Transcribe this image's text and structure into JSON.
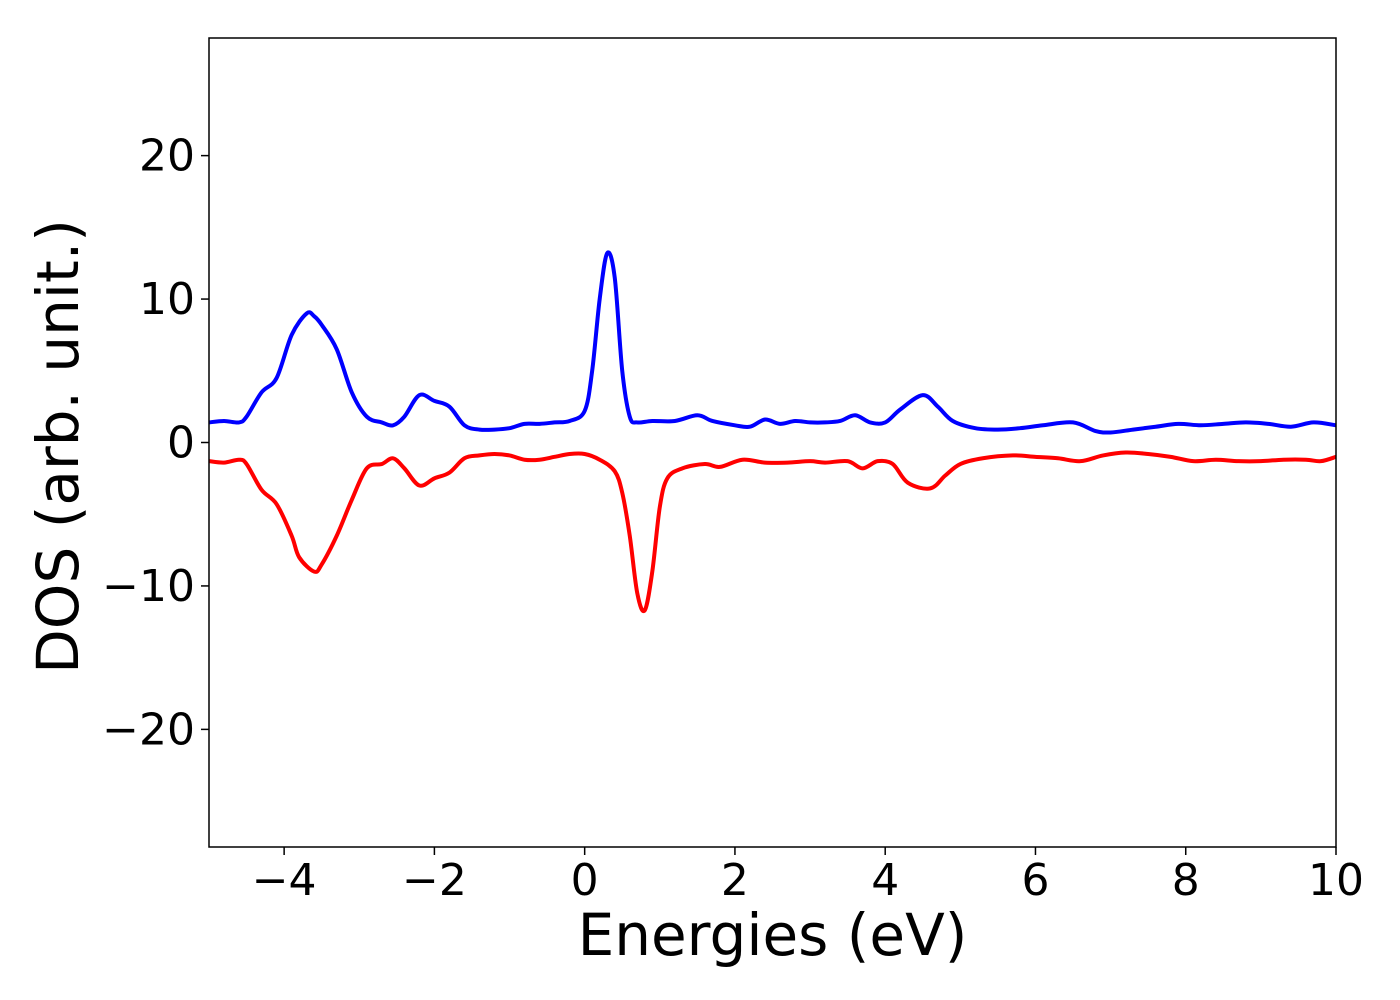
{
  "chart_data": {
    "type": "line",
    "title": "",
    "xlabel": "Energies (eV)",
    "ylabel": "DOS (arb. unit.)",
    "xlim": [
      -5,
      10
    ],
    "ylim": [
      -28.2,
      28.2
    ],
    "grid": false,
    "legend": "none",
    "x_ticks": [
      -4,
      -2,
      0,
      2,
      4,
      6,
      8,
      10
    ],
    "x_tick_labels": [
      "−4",
      "−2",
      "0",
      "2",
      "4",
      "6",
      "8",
      "10"
    ],
    "y_ticks": [
      -20,
      -10,
      0,
      10,
      20
    ],
    "y_tick_labels": [
      "−20",
      "−10",
      "0",
      "10",
      "20"
    ],
    "series": [
      {
        "color": "#0000ff",
        "x": [
          -5.0,
          -4.8,
          -4.6,
          -4.5,
          -4.3,
          -4.1,
          -3.9,
          -3.7,
          -3.6,
          -3.5,
          -3.3,
          -3.1,
          -2.9,
          -2.7,
          -2.55,
          -2.4,
          -2.2,
          -2.0,
          -1.8,
          -1.6,
          -1.4,
          -1.2,
          -1.0,
          -0.8,
          -0.6,
          -0.4,
          -0.2,
          0.0,
          0.1,
          0.2,
          0.3,
          0.4,
          0.5,
          0.6,
          0.7,
          0.9,
          1.2,
          1.5,
          1.7,
          2.0,
          2.2,
          2.4,
          2.6,
          2.8,
          3.0,
          3.2,
          3.4,
          3.6,
          3.8,
          4.0,
          4.2,
          4.5,
          4.7,
          4.9,
          5.2,
          5.5,
          5.8,
          6.1,
          6.5,
          6.8,
          7.0,
          7.3,
          7.6,
          7.9,
          8.2,
          8.5,
          8.8,
          9.1,
          9.4,
          9.7,
          10.0
        ],
        "y": [
          1.4,
          1.5,
          1.4,
          1.8,
          3.5,
          4.5,
          7.5,
          9.0,
          8.8,
          8.2,
          6.5,
          3.5,
          1.8,
          1.4,
          1.2,
          1.8,
          3.3,
          2.9,
          2.5,
          1.2,
          0.9,
          0.9,
          1.0,
          1.3,
          1.3,
          1.4,
          1.5,
          2.2,
          5.0,
          10.0,
          13.2,
          11.5,
          5.0,
          1.8,
          1.4,
          1.5,
          1.5,
          1.9,
          1.5,
          1.2,
          1.1,
          1.6,
          1.3,
          1.5,
          1.4,
          1.4,
          1.5,
          1.9,
          1.4,
          1.4,
          2.3,
          3.3,
          2.5,
          1.5,
          1.0,
          0.9,
          1.0,
          1.2,
          1.4,
          0.8,
          0.7,
          0.9,
          1.1,
          1.3,
          1.2,
          1.3,
          1.4,
          1.3,
          1.1,
          1.4,
          1.2
        ]
      },
      {
        "color": "#ff0000",
        "x": [
          -5.0,
          -4.8,
          -4.6,
          -4.5,
          -4.3,
          -4.1,
          -3.9,
          -3.8,
          -3.6,
          -3.5,
          -3.3,
          -3.1,
          -2.9,
          -2.7,
          -2.55,
          -2.4,
          -2.2,
          -2.0,
          -1.8,
          -1.6,
          -1.4,
          -1.2,
          -1.0,
          -0.8,
          -0.6,
          -0.4,
          -0.2,
          0.0,
          0.2,
          0.4,
          0.5,
          0.6,
          0.7,
          0.8,
          0.9,
          1.0,
          1.1,
          1.3,
          1.6,
          1.8,
          2.1,
          2.4,
          2.7,
          3.0,
          3.2,
          3.5,
          3.7,
          3.9,
          4.1,
          4.3,
          4.6,
          4.8,
          5.0,
          5.3,
          5.7,
          6.0,
          6.3,
          6.6,
          6.9,
          7.2,
          7.5,
          7.8,
          8.1,
          8.4,
          8.7,
          9.0,
          9.3,
          9.6,
          9.8,
          10.0
        ],
        "y": [
          -1.3,
          -1.4,
          -1.2,
          -1.5,
          -3.3,
          -4.3,
          -6.5,
          -8.0,
          -9.0,
          -8.5,
          -6.5,
          -4.0,
          -1.8,
          -1.5,
          -1.1,
          -1.8,
          -3.0,
          -2.5,
          -2.1,
          -1.1,
          -0.9,
          -0.8,
          -0.9,
          -1.2,
          -1.2,
          -1.0,
          -0.8,
          -0.8,
          -1.2,
          -2.0,
          -3.5,
          -6.5,
          -10.5,
          -11.7,
          -9.0,
          -4.5,
          -2.5,
          -1.8,
          -1.5,
          -1.7,
          -1.2,
          -1.4,
          -1.4,
          -1.3,
          -1.4,
          -1.3,
          -1.8,
          -1.3,
          -1.5,
          -2.8,
          -3.2,
          -2.3,
          -1.5,
          -1.1,
          -0.9,
          -1.0,
          -1.1,
          -1.3,
          -0.9,
          -0.7,
          -0.8,
          -1.0,
          -1.3,
          -1.2,
          -1.3,
          -1.3,
          -1.2,
          -1.2,
          -1.3,
          -1.0
        ]
      }
    ]
  }
}
